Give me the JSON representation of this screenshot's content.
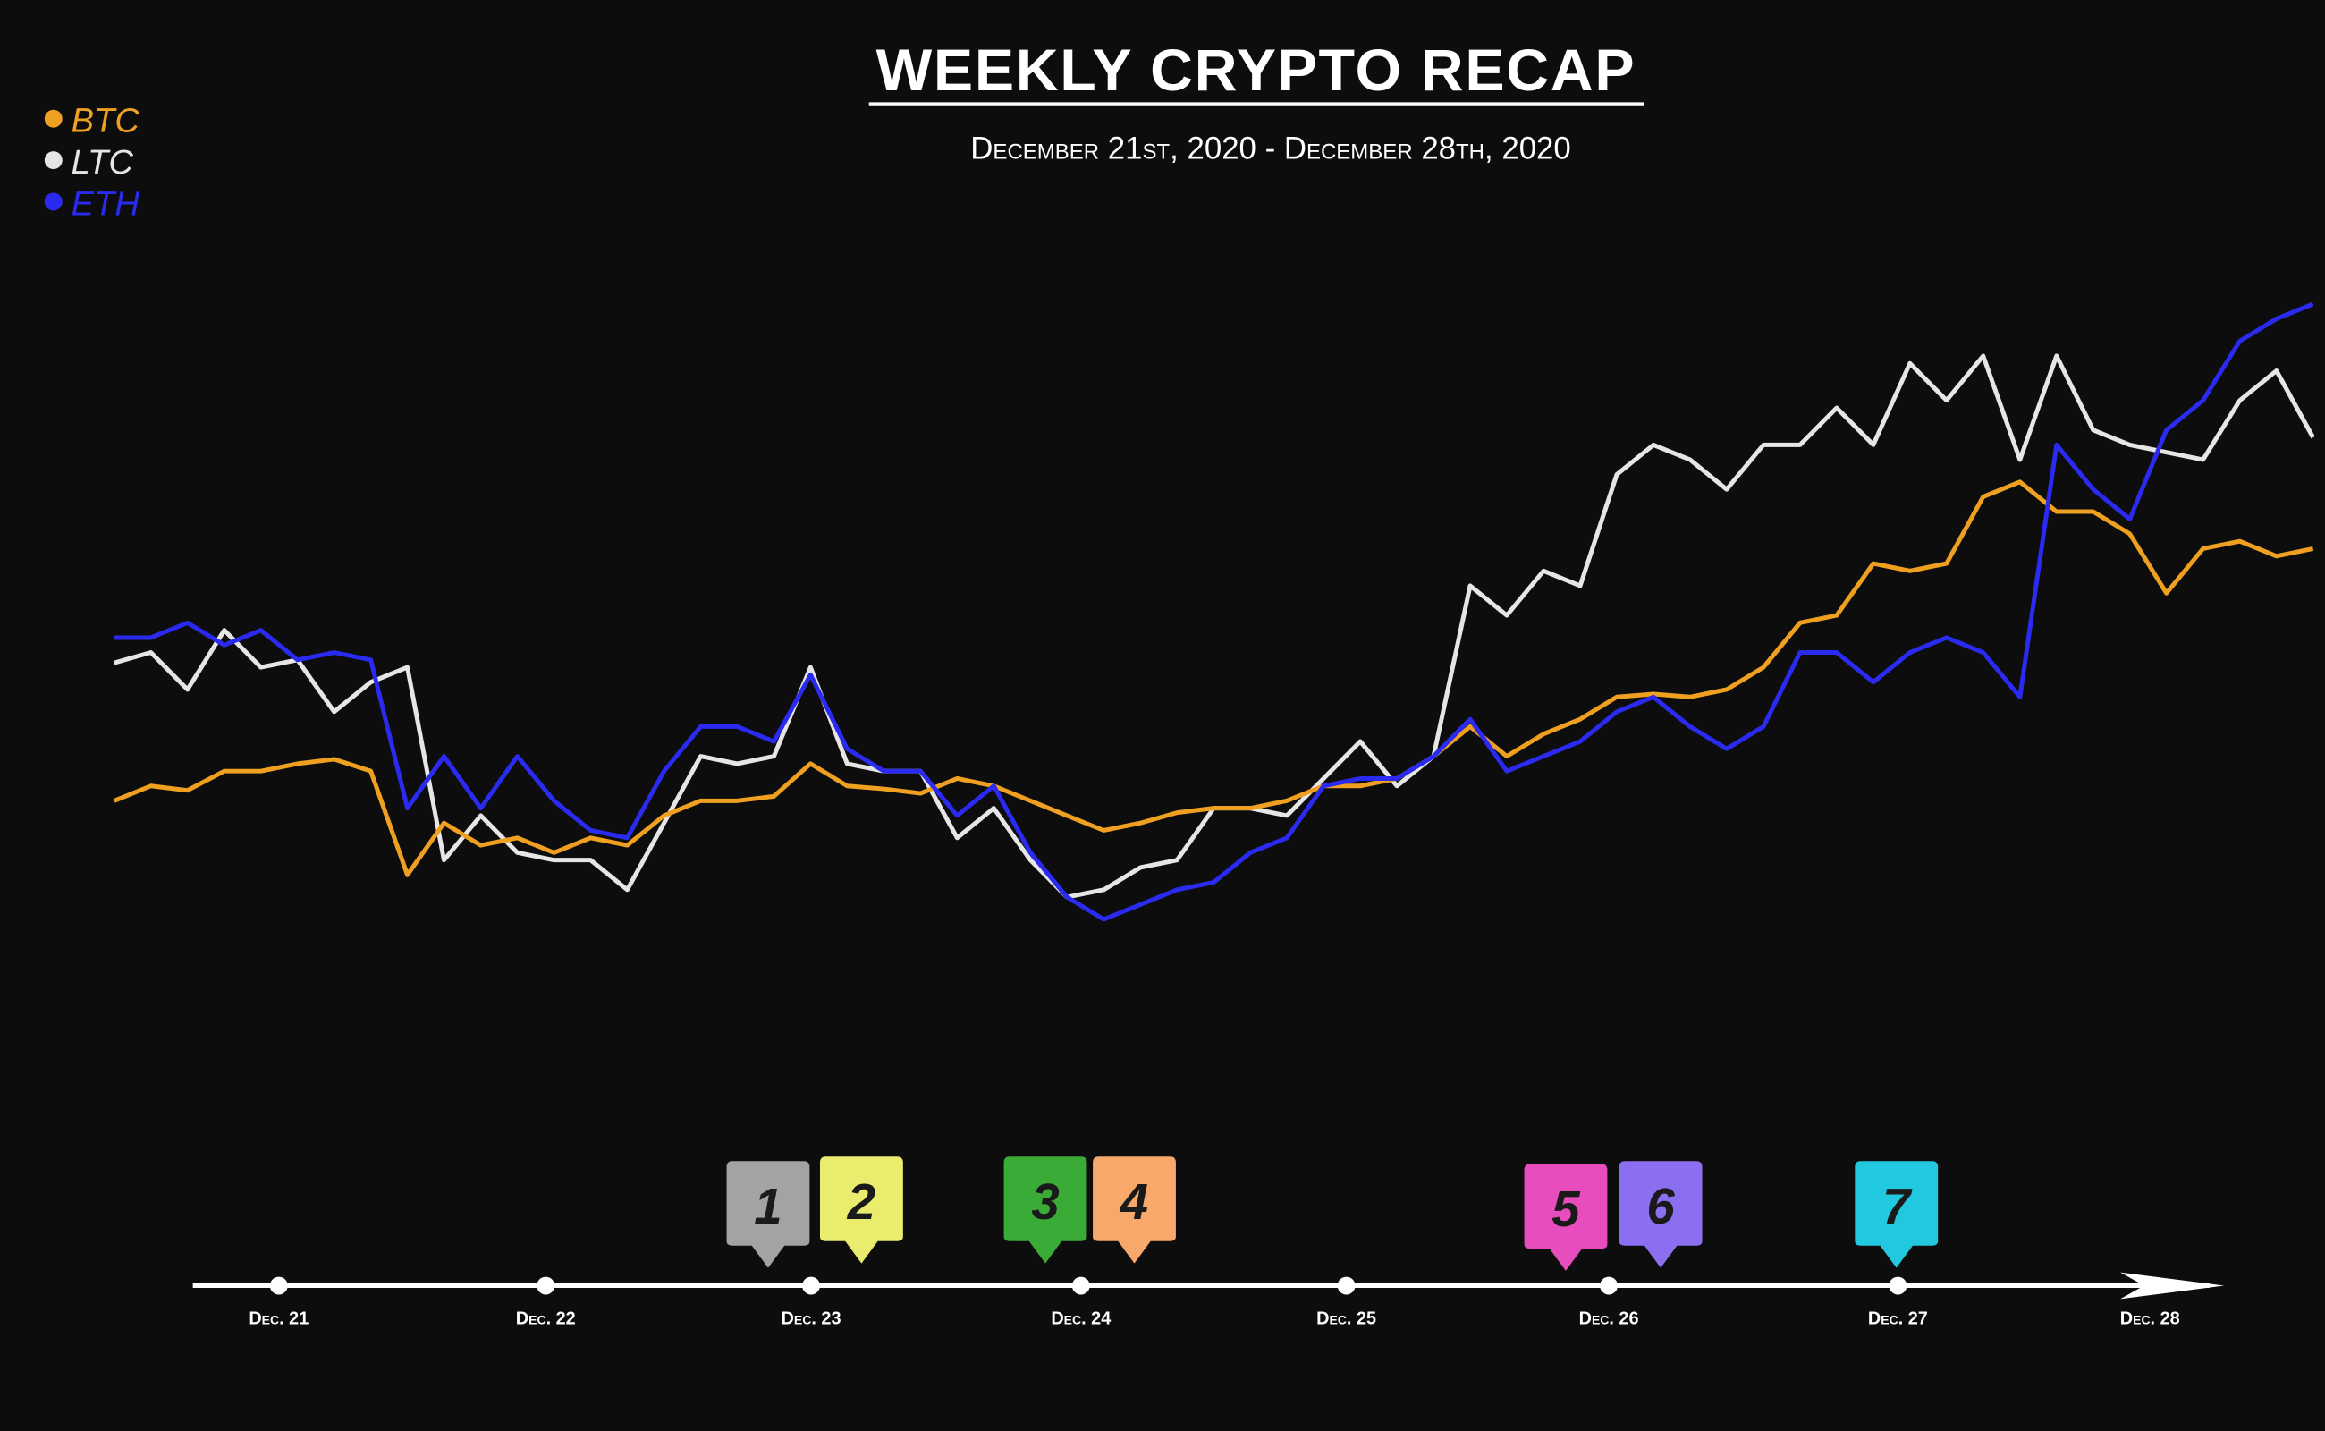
{
  "chart_data": {
    "type": "line",
    "title": "WEEKLY CRYPTO RECAP",
    "subtitle": "December 21st, 2020 - December 28th, 2020",
    "legend": "top-left",
    "ylim": [
      0,
      100
    ],
    "series": [
      {
        "name": "BTC",
        "color": "#f0a020",
        "values": [
          32,
          34,
          33.4,
          36,
          36,
          37,
          37.6,
          36,
          22,
          29,
          26,
          27,
          25,
          27,
          26,
          30,
          32,
          32,
          32.6,
          37,
          34,
          33.6,
          33,
          35,
          34,
          32,
          30,
          28,
          29,
          30.4,
          31,
          31,
          32,
          34,
          34,
          35,
          38,
          42,
          38,
          41,
          43,
          46,
          46.4,
          46,
          47,
          50,
          56,
          57,
          64,
          63,
          64,
          73,
          75,
          71,
          71,
          68,
          60,
          66,
          67,
          65,
          66
        ]
      },
      {
        "name": "LTC",
        "color": "#e6e6e6",
        "values": [
          50.6,
          52,
          47,
          55,
          50,
          51,
          44,
          48,
          50,
          24,
          30,
          25,
          24,
          24,
          20,
          29,
          38,
          37,
          38,
          50,
          37,
          36,
          36,
          27,
          31,
          24,
          19,
          20,
          23,
          24,
          31,
          31,
          30,
          35,
          40,
          34,
          38,
          61,
          57,
          63,
          61,
          76,
          80,
          78,
          74,
          80,
          80,
          85,
          80,
          91,
          86,
          92,
          78,
          92,
          82,
          80,
          79,
          78,
          86,
          90,
          81
        ]
      },
      {
        "name": "ETH",
        "color": "#2a2af0",
        "values": [
          54,
          54,
          56,
          53,
          55,
          51,
          52,
          51,
          31,
          38,
          31,
          38,
          32,
          28,
          27,
          36,
          42,
          42,
          40,
          49,
          39,
          36,
          36,
          30,
          34,
          25,
          19,
          16,
          18,
          20,
          21,
          25,
          27,
          34,
          35,
          35,
          38,
          43,
          36,
          38,
          40,
          44,
          46,
          42,
          39,
          42,
          52,
          52,
          48,
          52,
          54,
          52,
          46,
          80,
          74,
          70,
          82,
          86,
          94,
          97,
          99
        ]
      }
    ]
  },
  "timeline": {
    "dates": [
      "Dec. 21",
      "Dec. 22",
      "Dec. 23",
      "Dec. 24",
      "Dec. 25",
      "Dec. 26",
      "Dec. 27",
      "Dec. 28"
    ],
    "markers": [
      {
        "label": "1",
        "color": "#a3a3a3"
      },
      {
        "label": "2",
        "color": "#e9ec6c"
      },
      {
        "label": "3",
        "color": "#3aab36"
      },
      {
        "label": "4",
        "color": "#f8a86a"
      },
      {
        "label": "5",
        "color": "#e84dbe"
      },
      {
        "label": "6",
        "color": "#8b6ff0"
      },
      {
        "label": "7",
        "color": "#22c8e0"
      }
    ]
  }
}
